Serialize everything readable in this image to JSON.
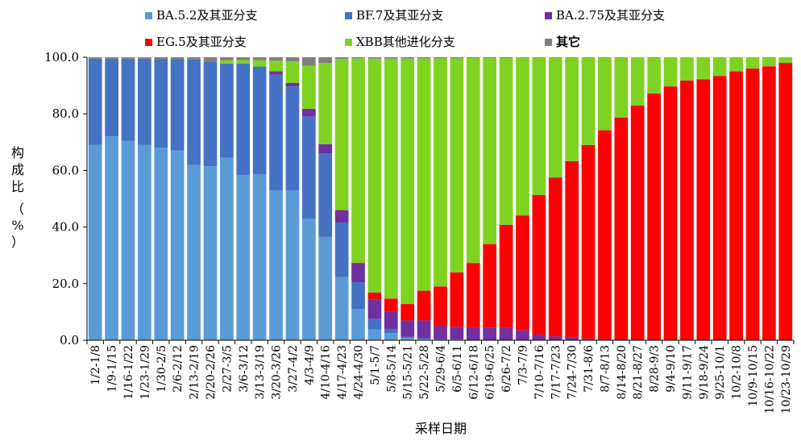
{
  "chart_data": {
    "type": "bar",
    "stacked": true,
    "xlabel": "采样日期",
    "ylabel_chars": [
      "构",
      "成",
      "比",
      "（",
      "%",
      "）"
    ],
    "ylim": [
      0,
      100
    ],
    "yticks": [
      "0.0",
      "20.0",
      "40.0",
      "60.0",
      "80.0",
      "100.0"
    ],
    "grid": false,
    "legend_position": "top",
    "categories": [
      "1/2-1/8",
      "1/9-1/15",
      "1/16-1/22",
      "1/23-1/29",
      "1/30-2/5",
      "2/6-2/12",
      "2/13-2/19",
      "2/20-2/26",
      "2/27-3/5",
      "3/6-3/12",
      "3/13-3/19",
      "3/20-3/26",
      "3/27-4/2",
      "4/3-4/9",
      "4/10-4/16",
      "4/17-4/23",
      "4/24-4/30",
      "5/1-5/7",
      "5/8-5/14",
      "5/15-5/21",
      "5/22-5/28",
      "5/29-6/4",
      "6/5-6/11",
      "6/12-6/18",
      "6/19-6/25",
      "6/26-7/2",
      "7/3-7/9",
      "7/10-7/16",
      "7/17-7/23",
      "7/24-7/30",
      "7/31-8/6",
      "8/7-8/13",
      "8/14-8/20",
      "8/21-8/27",
      "8/28-9/3",
      "9/4-9/10",
      "9/11-9/17",
      "9/18-9/24",
      "9/25-10/1",
      "10/2-10/8",
      "10/9-10/15",
      "10/16-10/22",
      "10/23-10/29"
    ],
    "series": [
      {
        "name": "BA.5.2及其亚分支",
        "color": "#5B9BD5",
        "values": [
          69,
          72,
          70.5,
          69,
          68,
          67,
          62,
          61.5,
          64.5,
          58.3,
          58.7,
          53,
          53,
          42.8,
          36.5,
          22.3,
          11,
          3.8,
          2.5,
          0.8,
          0.4,
          0.2,
          0.2,
          0,
          0,
          0,
          0,
          0,
          0,
          0,
          0,
          0,
          0,
          0,
          0,
          0,
          0,
          0,
          0,
          0,
          0,
          0,
          0
        ]
      },
      {
        "name": "BF.7及其亚分支",
        "color": "#4472C4",
        "values": [
          30.5,
          27.5,
          29,
          30.5,
          31.3,
          32.3,
          37.2,
          37,
          33.2,
          39.5,
          38,
          40.8,
          36.7,
          36.2,
          29.5,
          19.3,
          9.5,
          3.7,
          1.5,
          0.4,
          0.3,
          0.1,
          0.1,
          0,
          0,
          0,
          0,
          0,
          0,
          0,
          0,
          0,
          0,
          0,
          0,
          0,
          0,
          0,
          0,
          0,
          0,
          0,
          0
        ]
      },
      {
        "name": "BA.2.75及其亚分支",
        "color": "#7030A0",
        "values": [
          0,
          0,
          0,
          0,
          0,
          0,
          0,
          0,
          0,
          0,
          0,
          1.2,
          1.2,
          2.8,
          3.3,
          4.3,
          6.6,
          7,
          6,
          5.8,
          6.3,
          4.7,
          4.5,
          4.3,
          4.5,
          4.3,
          3.5,
          2,
          1.3,
          0.9,
          0.5,
          0.3,
          0.1,
          0.1,
          0,
          0,
          0,
          0,
          0,
          0,
          0,
          0,
          0
        ]
      },
      {
        "name": "EG.5及其亚分支",
        "color": "#FF0000",
        "values": [
          0,
          0,
          0,
          0,
          0,
          0,
          0,
          0,
          0,
          0,
          0,
          0,
          0,
          0,
          0,
          0.1,
          0.3,
          2.4,
          4.7,
          5.8,
          10.5,
          14,
          19.2,
          23,
          29.5,
          36.5,
          40.6,
          49.3,
          56.2,
          62.4,
          68.5,
          73.9,
          78.6,
          82.8,
          87.2,
          89.7,
          91.8,
          92.2,
          93.4,
          95,
          96,
          96.8,
          98
        ]
      },
      {
        "name": "XBB其他进化分支",
        "color": "#7ED321",
        "values": [
          0,
          0,
          0,
          0,
          0,
          0,
          0,
          0,
          1.2,
          1.2,
          2.2,
          3.8,
          7.6,
          15.2,
          28.7,
          53.4,
          72.2,
          82.6,
          84.8,
          86.7,
          82.1,
          80.6,
          75.6,
          72.4,
          65.7,
          58.9,
          55.7,
          48.5,
          42.3,
          36.5,
          30.8,
          25.6,
          21.1,
          17,
          12.6,
          10.2,
          8.1,
          7.7,
          6.5,
          4.9,
          3.9,
          3,
          1.9
        ]
      },
      {
        "name": "其它",
        "color": "#808080",
        "values": [
          0.5,
          0.5,
          0.5,
          0.5,
          0.7,
          0.7,
          0.8,
          1.5,
          1.1,
          1,
          1.1,
          1.2,
          1.5,
          3,
          2,
          0.6,
          0.4,
          0.5,
          0.5,
          0.5,
          0.4,
          0.4,
          0.4,
          0.3,
          0.3,
          0.3,
          0.2,
          0.2,
          0.2,
          0.2,
          0.2,
          0.2,
          0.2,
          0.1,
          0.2,
          0.1,
          0.1,
          0.1,
          0.1,
          0.1,
          0.1,
          0.2,
          0.1
        ]
      }
    ]
  }
}
